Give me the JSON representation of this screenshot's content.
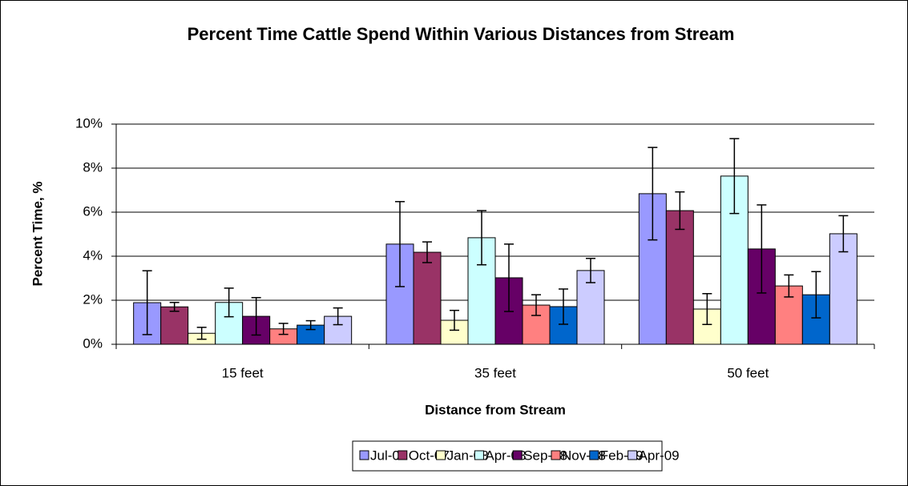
{
  "chart_data": {
    "type": "bar",
    "title": "Percent Time Cattle Spend Within Various Distances from Stream",
    "x_label": "Distance from Stream",
    "y_label": "Percent Time, %",
    "categories": [
      "15 feet",
      "35 feet",
      "50 feet"
    ],
    "ylim": [
      0,
      10
    ],
    "yticks": [
      {
        "value": 0,
        "label": "0%"
      },
      {
        "value": 2,
        "label": "2%"
      },
      {
        "value": 4,
        "label": "4%"
      },
      {
        "value": 6,
        "label": "6%"
      },
      {
        "value": 8,
        "label": "8%"
      },
      {
        "value": 10,
        "label": "10%"
      }
    ],
    "grid": true,
    "legend": "bottom",
    "series": [
      {
        "name": "Jul-07",
        "color": "#9999ff",
        "values": [
          1.89,
          4.55,
          6.84
        ],
        "errors": [
          1.45,
          1.93,
          2.1
        ]
      },
      {
        "name": "Oct-07",
        "color": "#993366",
        "values": [
          1.7,
          4.18,
          6.07
        ],
        "errors": [
          0.2,
          0.47,
          0.85
        ]
      },
      {
        "name": "Jan-08",
        "color": "#ffffcc",
        "values": [
          0.5,
          1.09,
          1.6
        ],
        "errors": [
          0.27,
          0.45,
          0.7
        ]
      },
      {
        "name": "Apr-08",
        "color": "#ccffff",
        "values": [
          1.9,
          4.84,
          7.64
        ],
        "errors": [
          0.65,
          1.23,
          1.7
        ]
      },
      {
        "name": "Sep-08",
        "color": "#660066",
        "values": [
          1.27,
          3.02,
          4.33
        ],
        "errors": [
          0.85,
          1.53,
          2.0
        ]
      },
      {
        "name": "Nov-08",
        "color": "#ff8080",
        "values": [
          0.7,
          1.78,
          2.65
        ],
        "errors": [
          0.25,
          0.47,
          0.5
        ]
      },
      {
        "name": "Feb-09",
        "color": "#0066cc",
        "values": [
          0.87,
          1.71,
          2.25
        ],
        "errors": [
          0.2,
          0.8,
          1.05
        ]
      },
      {
        "name": "Apr-09",
        "color": "#ccccff",
        "values": [
          1.27,
          3.35,
          5.02
        ],
        "errors": [
          0.38,
          0.55,
          0.82
        ]
      }
    ]
  }
}
